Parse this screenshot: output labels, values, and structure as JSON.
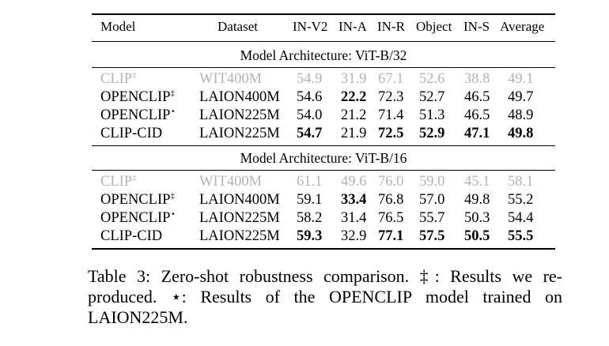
{
  "header": {
    "model": "Model",
    "dataset": "Dataset",
    "metrics": [
      "IN-V2",
      "IN-A",
      "IN-R",
      "Object",
      "IN-S",
      "Average"
    ]
  },
  "sections": [
    {
      "title": "Model Architecture: ViT-B/32",
      "rows": [
        {
          "model": "CLIP",
          "mark": "‡",
          "dataset": "WIT400M",
          "values": [
            "54.9",
            "31.9",
            "67.1",
            "52.6",
            "38.8",
            "49.1"
          ],
          "bold": [
            false,
            false,
            false,
            false,
            false,
            false
          ],
          "muted": true
        },
        {
          "model": "OPENCLIP",
          "mark": "‡",
          "dataset": "LAION400M",
          "values": [
            "54.6",
            "22.2",
            "72.3",
            "52.7",
            "46.5",
            "49.7"
          ],
          "bold": [
            false,
            true,
            false,
            false,
            false,
            false
          ],
          "muted": false
        },
        {
          "model": "OPENCLIP",
          "mark": "⋆",
          "dataset": "LAION225M",
          "values": [
            "54.0",
            "21.2",
            "71.4",
            "51.3",
            "46.5",
            "48.9"
          ],
          "bold": [
            false,
            false,
            false,
            false,
            false,
            false
          ],
          "muted": false
        },
        {
          "model": "CLIP-CID",
          "mark": "",
          "dataset": "LAION225M",
          "values": [
            "54.7",
            "21.9",
            "72.5",
            "52.9",
            "47.1",
            "49.8"
          ],
          "bold": [
            true,
            false,
            true,
            true,
            true,
            true
          ],
          "muted": false
        }
      ]
    },
    {
      "title": "Model Architecture: ViT-B/16",
      "rows": [
        {
          "model": "CLIP",
          "mark": "‡",
          "dataset": "WIT400M",
          "values": [
            "61.1",
            "49.6",
            "76.0",
            "59.0",
            "45.1",
            "58.1"
          ],
          "bold": [
            false,
            false,
            false,
            false,
            false,
            false
          ],
          "muted": true
        },
        {
          "model": "OPENCLIP",
          "mark": "‡",
          "dataset": "LAION400M",
          "values": [
            "59.1",
            "33.4",
            "76.8",
            "57.0",
            "49.8",
            "55.2"
          ],
          "bold": [
            false,
            true,
            false,
            false,
            false,
            false
          ],
          "muted": false
        },
        {
          "model": "OPENCLIP",
          "mark": "⋆",
          "dataset": "LAION225M",
          "values": [
            "58.2",
            "31.4",
            "76.5",
            "55.7",
            "50.3",
            "54.4"
          ],
          "bold": [
            false,
            false,
            false,
            false,
            false,
            false
          ],
          "muted": false
        },
        {
          "model": "CLIP-CID",
          "mark": "",
          "dataset": "LAION225M",
          "values": [
            "59.3",
            "32.9",
            "77.1",
            "57.5",
            "50.5",
            "55.5"
          ],
          "bold": [
            true,
            false,
            true,
            true,
            true,
            true
          ],
          "muted": false
        }
      ]
    }
  ],
  "caption": {
    "line1": "Table 3: Zero-shot robustness comparison. ‡: Results we re-",
    "line2": "produced. ⋆: Results of the OPENCLIP model trained on",
    "line3": "LAION225M."
  }
}
